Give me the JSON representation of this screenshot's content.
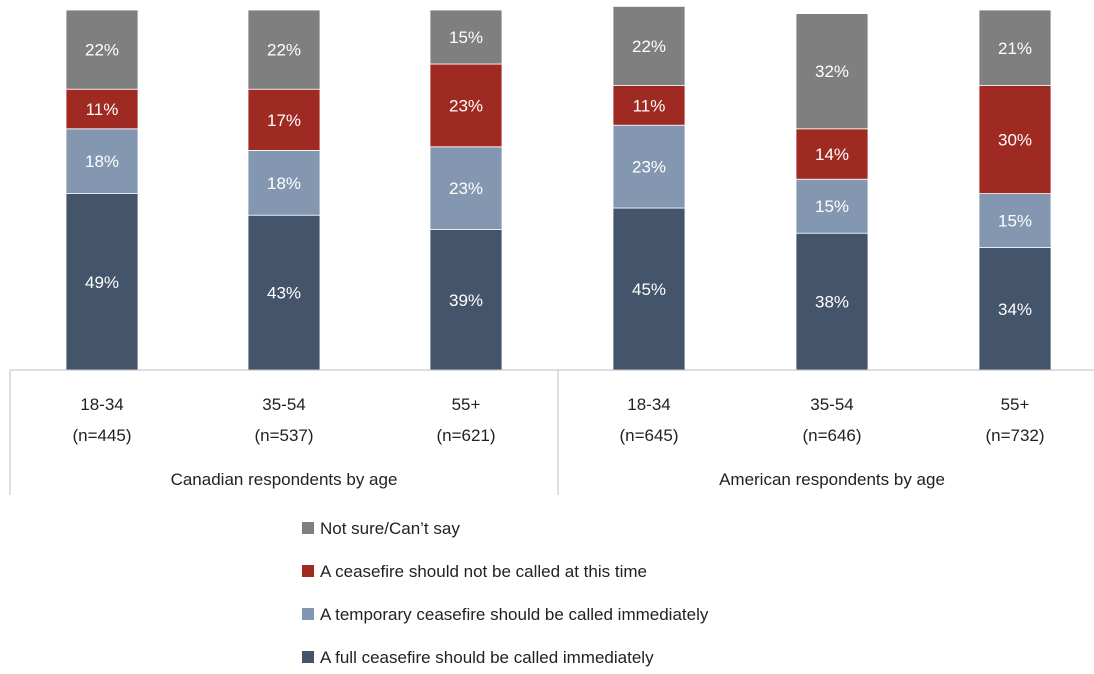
{
  "chart_data": {
    "type": "bar",
    "stacked": true,
    "categories": [
      {
        "label": "18-34",
        "n": "(n=445)",
        "group": 0
      },
      {
        "label": "35-54",
        "n": "(n=537)",
        "group": 0
      },
      {
        "label": "55+",
        "n": "(n=621)",
        "group": 0
      },
      {
        "label": "18-34",
        "n": "(n=645)",
        "group": 1
      },
      {
        "label": "35-54",
        "n": "(n=646)",
        "group": 1
      },
      {
        "label": "55+",
        "n": "(n=732)",
        "group": 1
      }
    ],
    "groups": [
      "Canadian respondents by age",
      "American respondents by age"
    ],
    "series": [
      {
        "name": "A full ceasefire should be called immediately",
        "color": "#44546a",
        "values": [
          49,
          43,
          39,
          45,
          38,
          34
        ],
        "labels": [
          "49%",
          "43%",
          "39%",
          "45%",
          "38%",
          "34%"
        ]
      },
      {
        "name": "A temporary ceasefire should be called immediately",
        "color": "#8497b0",
        "values": [
          18,
          18,
          23,
          23,
          15,
          15
        ],
        "labels": [
          "18%",
          "18%",
          "23%",
          "23%",
          "15%",
          "15%"
        ]
      },
      {
        "name": "A ceasefire should not be called at this time",
        "color": "#9e2a22",
        "values": [
          11,
          17,
          23,
          11,
          14,
          30
        ],
        "labels": [
          "11%",
          "17%",
          "23%",
          "11%",
          "14%",
          "30%"
        ]
      },
      {
        "name": "Not sure/Can’t say",
        "color": "#7f7f7f",
        "values": [
          22,
          22,
          15,
          22,
          32,
          21
        ],
        "labels": [
          "22%",
          "22%",
          "15%",
          "22%",
          "32%",
          "21%"
        ]
      }
    ],
    "legend": {
      "position": "bottom",
      "order": [
        3,
        2,
        1,
        0
      ]
    },
    "ylim": [
      0,
      100
    ],
    "grid": false
  }
}
